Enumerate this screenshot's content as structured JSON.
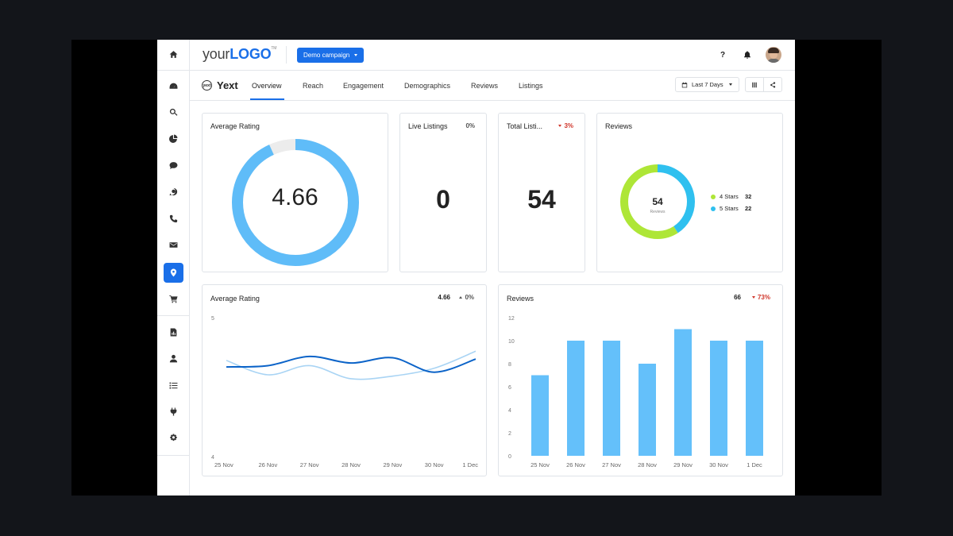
{
  "header": {
    "logo_prefix": "your",
    "logo_brand": "LOGO",
    "logo_tm": "TM",
    "campaign_label": "Demo campaign",
    "help_label": "?"
  },
  "sidebar": {
    "items": [
      {
        "icon": "home-icon"
      },
      {
        "icon": "dashboard-icon"
      },
      {
        "icon": "search-icon"
      },
      {
        "icon": "pie-chart-icon"
      },
      {
        "icon": "chat-icon"
      },
      {
        "icon": "refresh-chat-icon"
      },
      {
        "icon": "phone-icon"
      },
      {
        "icon": "email-icon"
      },
      {
        "icon": "location-pin-icon",
        "active": true
      },
      {
        "icon": "cart-icon"
      },
      {
        "icon": "report-icon"
      },
      {
        "icon": "user-icon"
      },
      {
        "icon": "checklist-icon"
      },
      {
        "icon": "plug-icon"
      },
      {
        "icon": "gear-icon"
      }
    ]
  },
  "integration": {
    "name": "Yext",
    "tabs": [
      "Overview",
      "Reach",
      "Engagement",
      "Demographics",
      "Reviews",
      "Listings"
    ],
    "active_tab": "Overview",
    "date_range": "Last 7 Days"
  },
  "cards": {
    "avg_rating_donut": {
      "title": "Average Rating",
      "value": "4.66",
      "fraction": 0.932
    },
    "live_listings": {
      "title": "Live Listings",
      "delta": "0%",
      "value": "0"
    },
    "total_listings": {
      "title": "Total Listi...",
      "delta": "3%",
      "value": "54"
    },
    "reviews_donut": {
      "title": "Reviews",
      "total": "54",
      "sublabel": "Reviews",
      "segments": [
        {
          "label": "4 Stars",
          "value": "32",
          "color": "#aee637"
        },
        {
          "label": "5 Stars",
          "value": "22",
          "color": "#2fc0ef"
        }
      ]
    },
    "avg_rating_line": {
      "title": "Average Rating",
      "value": "4.66",
      "delta": "0%"
    },
    "reviews_bar": {
      "title": "Reviews",
      "value": "66",
      "delta": "73%"
    }
  },
  "colors": {
    "accent": "#1a6fe8",
    "donut": "#5fbcf8",
    "bar": "#64c0fa",
    "line_primary": "#0b63c8",
    "line_secondary": "#a9d4f4",
    "negative": "#d0362b"
  },
  "chart_data": [
    {
      "type": "line",
      "title": "Average Rating",
      "x": [
        "25 Nov",
        "26 Nov",
        "27 Nov",
        "28 Nov",
        "29 Nov",
        "30 Nov",
        "1 Dec"
      ],
      "ylim": [
        4,
        5
      ],
      "ytick_labels": [
        "5",
        "4"
      ],
      "series": [
        {
          "values": [
            4.66,
            4.67,
            4.74,
            4.69,
            4.73,
            4.62,
            4.72
          ]
        },
        {
          "values": [
            4.71,
            4.6,
            4.67,
            4.57,
            4.59,
            4.65,
            4.78
          ]
        }
      ]
    },
    {
      "type": "bar",
      "title": "Reviews",
      "categories": [
        "25 Nov",
        "26 Nov",
        "27 Nov",
        "28 Nov",
        "29 Nov",
        "30 Nov",
        "1 Dec"
      ],
      "values": [
        7,
        10,
        10,
        8,
        11,
        10,
        10
      ],
      "ylim": [
        0,
        12
      ],
      "yticks": [
        "0",
        "2",
        "4",
        "6",
        "8",
        "10",
        "12"
      ]
    }
  ]
}
